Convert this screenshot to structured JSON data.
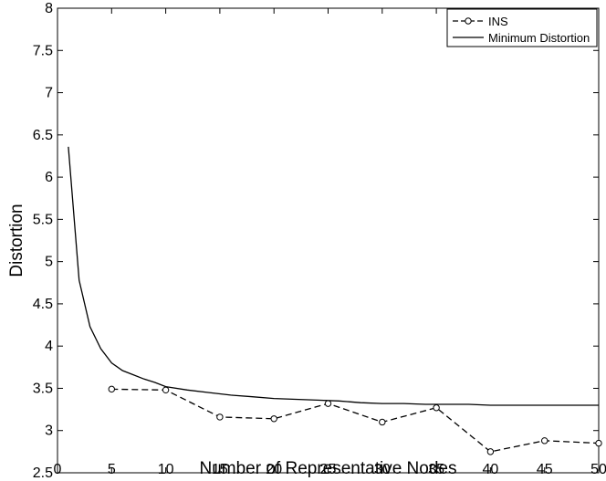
{
  "chart_data": {
    "type": "line",
    "title": "",
    "xlabel": "Number of Representative Nodes",
    "ylabel": "Distortion",
    "xlim": [
      0,
      50
    ],
    "ylim": [
      2.5,
      8
    ],
    "xticks": [
      0,
      5,
      10,
      15,
      20,
      25,
      30,
      35,
      40,
      45,
      50
    ],
    "yticks": [
      2.5,
      3,
      3.5,
      4,
      4.5,
      5,
      5.5,
      6,
      6.5,
      7,
      7.5,
      8
    ],
    "grid": false,
    "legend_position": "top-right",
    "series": [
      {
        "name": "INS",
        "style": "dashed-circle",
        "color": "#000000",
        "x": [
          5,
          10,
          15,
          20,
          25,
          30,
          35,
          40,
          45,
          50
        ],
        "y": [
          3.49,
          3.48,
          3.16,
          3.14,
          3.32,
          3.1,
          3.27,
          2.75,
          2.88,
          2.85
        ]
      },
      {
        "name": "Minimum Distortion",
        "style": "solid",
        "color": "#000000",
        "x": [
          1,
          2,
          3,
          4,
          5,
          6,
          7,
          8,
          9,
          10,
          12,
          14,
          16,
          18,
          20,
          22,
          24,
          26,
          28,
          30,
          32,
          34,
          36,
          38,
          40,
          42,
          44,
          46,
          48,
          50
        ],
        "y": [
          6.36,
          4.78,
          4.23,
          3.97,
          3.8,
          3.71,
          3.66,
          3.61,
          3.57,
          3.52,
          3.48,
          3.45,
          3.42,
          3.4,
          3.38,
          3.37,
          3.36,
          3.35,
          3.33,
          3.32,
          3.32,
          3.31,
          3.31,
          3.31,
          3.3,
          3.3,
          3.3,
          3.3,
          3.3,
          3.3
        ]
      }
    ]
  }
}
